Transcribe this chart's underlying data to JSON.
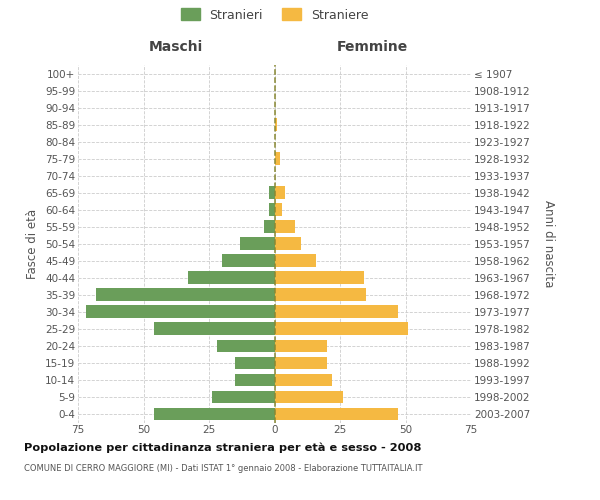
{
  "age_groups": [
    "100+",
    "95-99",
    "90-94",
    "85-89",
    "80-84",
    "75-79",
    "70-74",
    "65-69",
    "60-64",
    "55-59",
    "50-54",
    "45-49",
    "40-44",
    "35-39",
    "30-34",
    "25-29",
    "20-24",
    "15-19",
    "10-14",
    "5-9",
    "0-4"
  ],
  "birth_years": [
    "≤ 1907",
    "1908-1912",
    "1913-1917",
    "1918-1922",
    "1923-1927",
    "1928-1932",
    "1933-1937",
    "1938-1942",
    "1943-1947",
    "1948-1952",
    "1953-1957",
    "1958-1962",
    "1963-1967",
    "1968-1972",
    "1973-1977",
    "1978-1982",
    "1983-1987",
    "1988-1992",
    "1993-1997",
    "1998-2002",
    "2003-2007"
  ],
  "males": [
    0,
    0,
    0,
    0,
    0,
    0,
    0,
    2,
    2,
    4,
    13,
    20,
    33,
    68,
    72,
    46,
    22,
    15,
    15,
    24,
    46
  ],
  "females": [
    0,
    0,
    0,
    1,
    0,
    2,
    0,
    4,
    3,
    8,
    10,
    16,
    34,
    35,
    47,
    51,
    20,
    20,
    22,
    26,
    47
  ],
  "male_color": "#6a9e5a",
  "female_color": "#f5b942",
  "title": "Popolazione per cittadinanza straniera per età e sesso - 2008",
  "subtitle": "COMUNE DI CERRO MAGGIORE (MI) - Dati ISTAT 1° gennaio 2008 - Elaborazione TUTTAITALIA.IT",
  "ylabel_left": "Fasce di età",
  "ylabel_right": "Anni di nascita",
  "header_left": "Maschi",
  "header_right": "Femmine",
  "legend_male": "Stranieri",
  "legend_female": "Straniere",
  "xlim": 75
}
